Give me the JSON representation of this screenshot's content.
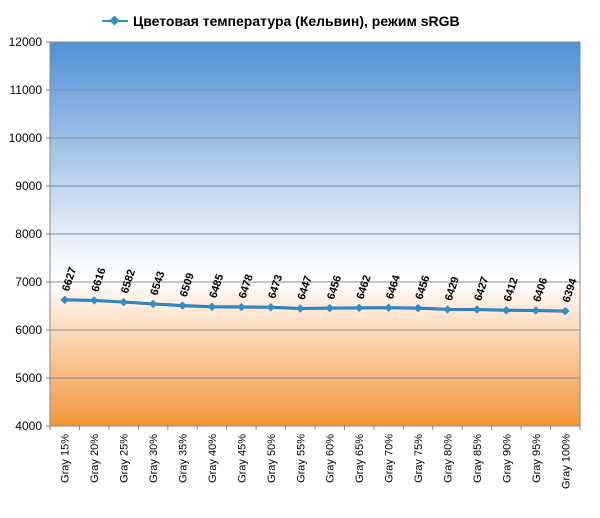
{
  "chart_data": {
    "type": "line",
    "title": "Цветовая температура (Кельвин), режим sRGB",
    "legend": {
      "position": "top",
      "entry": "Цветовая температура (Кельвин), режим sRGB"
    },
    "categories": [
      "Gray 15%",
      "Gray 20%",
      "Gray 25%",
      "Gray 30%",
      "Gray 35%",
      "Gray 40%",
      "Gray 45%",
      "Gray 50%",
      "Gray 55%",
      "Gray 60%",
      "Gray 65%",
      "Gray 70%",
      "Gray 75%",
      "Gray 80%",
      "Gray 85%",
      "Gray 90%",
      "Gray 95%",
      "Gray 100%"
    ],
    "series": [
      {
        "name": "Цветовая температура (Кельвин), режим sRGB",
        "values": [
          6627,
          6616,
          6582,
          6543,
          6509,
          6485,
          6478,
          6473,
          6447,
          6456,
          6462,
          6464,
          6456,
          6429,
          6427,
          6412,
          6406,
          6394
        ],
        "color": "#2e8fc7"
      }
    ],
    "ylim": [
      4000,
      12000
    ],
    "yticks": [
      4000,
      5000,
      6000,
      7000,
      8000,
      9000,
      10000,
      11000,
      12000
    ],
    "grid": true,
    "xlabel": "",
    "ylabel": "",
    "background_gradient": [
      "#4f8fd6",
      "#ffffff",
      "#f39537"
    ]
  }
}
